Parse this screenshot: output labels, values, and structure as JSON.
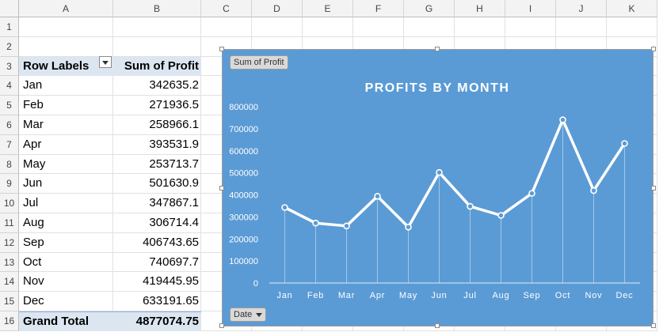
{
  "sheet": {
    "columns": [
      "A",
      "B",
      "C",
      "D",
      "E",
      "F",
      "G",
      "H",
      "I",
      "J",
      "K"
    ],
    "rows": [
      "1",
      "2",
      "3",
      "4",
      "5",
      "6",
      "7",
      "8",
      "9",
      "10",
      "11",
      "12",
      "13",
      "14",
      "15",
      "16"
    ]
  },
  "pivot": {
    "header_label": "Row Labels",
    "header_value": "Sum of Profit",
    "rows": [
      {
        "label": "Jan",
        "value": "342635.2"
      },
      {
        "label": "Feb",
        "value": "271936.5"
      },
      {
        "label": "Mar",
        "value": "258966.1"
      },
      {
        "label": "Apr",
        "value": "393531.9"
      },
      {
        "label": "May",
        "value": "253713.7"
      },
      {
        "label": "Jun",
        "value": "501630.9"
      },
      {
        "label": "Jul",
        "value": "347867.1"
      },
      {
        "label": "Aug",
        "value": "306714.4"
      },
      {
        "label": "Sep",
        "value": "406743.65"
      },
      {
        "label": "Oct",
        "value": "740697.7"
      },
      {
        "label": "Nov",
        "value": "419445.95"
      },
      {
        "label": "Dec",
        "value": "633191.65"
      }
    ],
    "total_label": "Grand Total",
    "total_value": "4877074.75"
  },
  "chart_buttons": {
    "value_field": "Sum of Profit",
    "axis_field": "Date"
  },
  "chart_data": {
    "type": "line",
    "title": "PROFITS BY MONTH",
    "categories": [
      "Jan",
      "Feb",
      "Mar",
      "Apr",
      "May",
      "Jun",
      "Jul",
      "Aug",
      "Sep",
      "Oct",
      "Nov",
      "Dec"
    ],
    "values": [
      342635.2,
      271936.5,
      258966.1,
      393531.9,
      253713.7,
      501630.9,
      347867.1,
      306714.4,
      406743.65,
      740697.7,
      419445.95,
      633191.65
    ],
    "ylim": [
      0,
      800000
    ],
    "yticks": [
      "0",
      "100000",
      "200000",
      "300000",
      "400000",
      "500000",
      "600000",
      "700000",
      "800000"
    ],
    "xlabel": "",
    "ylabel": "",
    "grid": false,
    "background": "#5b9bd5",
    "line_color": "#ffffff"
  }
}
